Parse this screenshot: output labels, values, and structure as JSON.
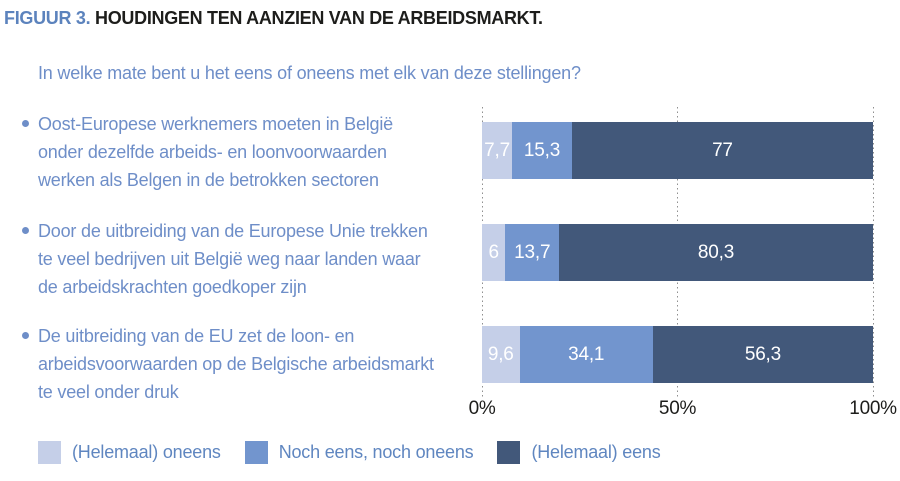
{
  "figure": {
    "label": "FIGUUR 3.",
    "title": "HOUDINGEN TEN AANZIEN VAN DE ARBEIDSMARKT.",
    "question": "In welke mate bent u het eens of oneens met elk van deze stellingen?"
  },
  "statements": [
    {
      "lines": [
        "Oost-Europese werknemers moeten in België",
        "onder dezelfde arbeids- en loonvoorwaarden",
        "werken als Belgen in de betrokken sectoren"
      ]
    },
    {
      "lines": [
        "Door de uitbreiding van de Europese Unie trekken",
        "te veel bedrijven uit België weg naar landen waar",
        "de arbeidskrachten goedkoper zijn"
      ]
    },
    {
      "lines": [
        "De uitbreiding van de EU zet de loon- en",
        "arbeidsvoorwaarden op de Belgische arbeidsmarkt",
        "te veel onder druk"
      ]
    }
  ],
  "chart_data": {
    "type": "bar",
    "stacked": true,
    "orientation": "horizontal",
    "title": "Houdingen ten aanzien van de arbeidsmarkt",
    "unit": "%",
    "xlim": [
      0,
      100
    ],
    "x_ticks": [
      {
        "label": "0%",
        "value": 0
      },
      {
        "label": "50%",
        "value": 50
      },
      {
        "label": "100%",
        "value": 100
      }
    ],
    "grid": "vertical-dotted",
    "legend_position": "bottom",
    "categories": [
      "Oost-Europese werknemers moeten in België onder dezelfde arbeids- en loonvoorwaarden werken als Belgen in de betrokken sectoren",
      "Door de uitbreiding van de Europese Unie trekken te veel bedrijven uit België weg naar landen waar de arbeidskrachten goedkoper zijn",
      "De uitbreiding van de EU zet de loon- en arbeidsvoorwaarden op de Belgische arbeidsmarkt te veel onder druk"
    ],
    "series": [
      {
        "name": "(Helemaal) oneens",
        "color": "#c5cfe8",
        "values": [
          7.7,
          6,
          9.6
        ],
        "value_labels": [
          "7,7",
          "6",
          "9,6"
        ]
      },
      {
        "name": "Noch eens, noch oneens",
        "color": "#7295ce",
        "values": [
          15.3,
          13.7,
          34.1
        ],
        "value_labels": [
          "15,3",
          "13,7",
          "34,1"
        ]
      },
      {
        "name": "(Helemaal) eens",
        "color": "#42587a",
        "values": [
          77,
          80.3,
          56.3
        ],
        "value_labels": [
          "77",
          "80,3",
          "56,3"
        ]
      }
    ]
  },
  "colors": {
    "figure_label": "#5c83bd",
    "title_text": "#1d1d1b",
    "body_blue_text": "#6e8ec8",
    "legend_text": "#5f86c0",
    "axis_text": "#1d1d1b",
    "gridline": "#8f8f8f",
    "bar_value_text": "#ffffff",
    "background": "#ffffff"
  }
}
